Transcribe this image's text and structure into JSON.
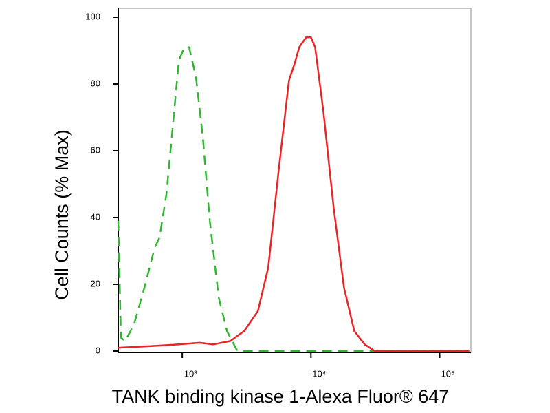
{
  "chart_data": {
    "type": "line",
    "xlabel": "TANK binding kinase 1-Alexa Fluor® 647",
    "ylabel": "Cell Counts (% Max)",
    "xscale": "log",
    "xlim": [
      318,
      175000
    ],
    "ylim": [
      0,
      100
    ],
    "xticks": [
      {
        "value": 1000,
        "label": "10³"
      },
      {
        "value": 10000,
        "label": "10⁴"
      },
      {
        "value": 100000,
        "label": "10⁵"
      }
    ],
    "yticks": [
      0,
      20,
      40,
      60,
      80,
      100
    ],
    "series": [
      {
        "color": "#2db82d",
        "line_style": "dashed",
        "x": [
          318,
          334,
          360,
          422,
          508,
          611,
          666,
          753,
          852,
          940,
          1038,
          1131,
          1278,
          1446,
          1636,
          1920,
          2227,
          2680,
          170000
        ],
        "values": [
          39,
          4,
          3,
          8,
          19,
          31,
          34,
          47,
          69,
          87,
          91,
          91,
          82,
          64,
          39,
          16,
          6,
          0,
          0
        ]
      },
      {
        "color": "#ee2222",
        "line_style": "solid",
        "x": [
          318,
          574,
          940,
          1361,
          1741,
          2366,
          3027,
          3872,
          4656,
          5610,
          6746,
          7447,
          8113,
          9181,
          10000,
          10770,
          12480,
          15010,
          18060,
          21730,
          26140,
          31440,
          170000
        ],
        "values": [
          1,
          1.5,
          2,
          2.5,
          2,
          3,
          6,
          12,
          25,
          54,
          81,
          86,
          91,
          94,
          94,
          91,
          72,
          43,
          19,
          6,
          2,
          0,
          0
        ]
      }
    ]
  }
}
